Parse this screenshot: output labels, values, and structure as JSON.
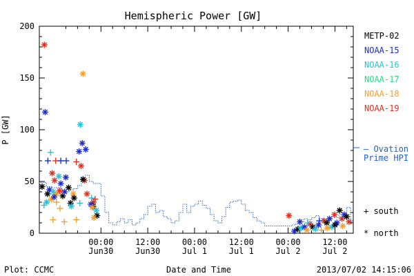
{
  "chart_data": {
    "type": "scatter",
    "title": "Hemispheric Power [GW]",
    "ylabel": "P [GW]",
    "xlabel": "Date and Time",
    "ylim": [
      0,
      200
    ],
    "y_ticks": [
      0,
      50,
      100,
      150,
      200
    ],
    "x_range_hours": [
      -15.8,
      64.7
    ],
    "x_ticks": [
      {
        "hour": 0,
        "line1": "00:00",
        "line2": "Jun30"
      },
      {
        "hour": 12,
        "line1": "12:00",
        "line2": "Jun30"
      },
      {
        "hour": 24,
        "line1": "00:00",
        "line2": "Jul 1"
      },
      {
        "hour": 36,
        "line1": "12:00",
        "line2": "Jul 1"
      },
      {
        "hour": 48,
        "line1": "00:00",
        "line2": "Jul 2"
      },
      {
        "hour": 60,
        "line1": "12:00",
        "line2": "Jul 2"
      }
    ],
    "legend": [
      {
        "name": "METP-02",
        "color": "#000000"
      },
      {
        "name": "NOAA-15",
        "color": "#1c2bd0"
      },
      {
        "name": "NOAA-16",
        "color": "#22c4e0"
      },
      {
        "name": "NOAA-17",
        "color": "#22dd88"
      },
      {
        "name": "NOAA-18",
        "color": "#f0a030"
      },
      {
        "name": "NOAA-19",
        "color": "#e03020"
      }
    ],
    "ovation_label_line1": "– Ovation",
    "ovation_label_line2": "Prime HPI",
    "ovation_color": "#1f5fd0",
    "symbol_south_label": "+ south",
    "symbol_north_label": "* north",
    "ovation_series": [
      [
        -15.5,
        49
      ],
      [
        -14,
        45
      ],
      [
        -12.5,
        44
      ],
      [
        -11,
        44
      ],
      [
        -10,
        42
      ],
      [
        -9,
        40
      ],
      [
        -8,
        42
      ],
      [
        -7,
        43
      ],
      [
        -6,
        46
      ],
      [
        -5,
        54
      ],
      [
        -4,
        56
      ],
      [
        -3,
        50
      ],
      [
        -2,
        48
      ],
      [
        -1,
        48
      ],
      [
        0,
        36
      ],
      [
        1,
        20
      ],
      [
        2,
        10
      ],
      [
        3,
        8
      ],
      [
        4,
        11
      ],
      [
        5,
        14
      ],
      [
        6,
        10
      ],
      [
        7,
        13
      ],
      [
        8,
        8
      ],
      [
        9,
        10
      ],
      [
        10,
        14
      ],
      [
        11,
        18
      ],
      [
        12,
        26
      ],
      [
        13,
        28
      ],
      [
        14,
        20
      ],
      [
        15,
        22
      ],
      [
        16,
        16
      ],
      [
        17,
        14
      ],
      [
        18,
        10
      ],
      [
        19,
        12
      ],
      [
        20,
        20
      ],
      [
        21,
        28
      ],
      [
        22,
        20
      ],
      [
        23,
        26
      ],
      [
        24,
        28
      ],
      [
        25,
        31
      ],
      [
        26,
        27
      ],
      [
        27,
        24
      ],
      [
        28,
        18
      ],
      [
        29,
        12
      ],
      [
        30,
        10
      ],
      [
        31,
        16
      ],
      [
        32,
        25
      ],
      [
        33,
        30
      ],
      [
        34,
        31
      ],
      [
        35,
        32
      ],
      [
        36,
        28
      ],
      [
        37,
        22
      ],
      [
        38,
        20
      ],
      [
        39,
        15
      ],
      [
        40,
        12
      ],
      [
        41,
        10
      ],
      [
        42,
        7
      ],
      [
        43,
        7
      ],
      [
        44,
        7
      ],
      [
        45,
        7
      ],
      [
        46,
        7
      ],
      [
        47,
        7
      ],
      [
        48,
        7
      ],
      [
        49,
        8
      ],
      [
        50,
        9
      ],
      [
        51,
        11
      ],
      [
        52,
        14
      ],
      [
        53,
        13
      ],
      [
        54,
        15
      ],
      [
        55,
        17
      ],
      [
        56,
        14
      ],
      [
        57,
        12
      ],
      [
        58,
        14
      ],
      [
        59,
        16
      ],
      [
        60,
        15
      ],
      [
        61,
        18
      ],
      [
        62,
        20
      ],
      [
        63,
        25
      ],
      [
        64,
        12
      ]
    ],
    "points": [
      {
        "sat": "NOAA-19",
        "h": "north",
        "x": -14.5,
        "y": 182
      },
      {
        "sat": "NOAA-15",
        "h": "north",
        "x": -14.3,
        "y": 117
      },
      {
        "sat": "NOAA-18",
        "h": "north",
        "x": -4.6,
        "y": 154
      },
      {
        "sat": "NOAA-16",
        "h": "north",
        "x": -5.3,
        "y": 105
      },
      {
        "sat": "NOAA-15",
        "h": "north",
        "x": -4.8,
        "y": 87
      },
      {
        "sat": "NOAA-15",
        "h": "north",
        "x": -3.9,
        "y": 81
      },
      {
        "sat": "NOAA-15",
        "h": "north",
        "x": -5.6,
        "y": 79
      },
      {
        "sat": "NOAA-16",
        "h": "south",
        "x": -12.9,
        "y": 78
      },
      {
        "sat": "NOAA-15",
        "h": "south",
        "x": -13.6,
        "y": 70
      },
      {
        "sat": "NOAA-19",
        "h": "south",
        "x": -11.6,
        "y": 70
      },
      {
        "sat": "NOAA-15",
        "h": "south",
        "x": -10.3,
        "y": 70
      },
      {
        "sat": "NOAA-15",
        "h": "south",
        "x": -8.9,
        "y": 70
      },
      {
        "sat": "NOAA-19",
        "h": "south",
        "x": -6.3,
        "y": 69
      },
      {
        "sat": "NOAA-19",
        "h": "north",
        "x": -5.1,
        "y": 65
      },
      {
        "sat": "NOAA-19",
        "h": "north",
        "x": -12.5,
        "y": 58
      },
      {
        "sat": "NOAA-16",
        "h": "north",
        "x": -10.8,
        "y": 55
      },
      {
        "sat": "NOAA-15",
        "h": "north",
        "x": -9.0,
        "y": 54
      },
      {
        "sat": "NOAA-19",
        "h": "north",
        "x": -11.9,
        "y": 51
      },
      {
        "sat": "NOAA-19",
        "h": "north",
        "x": -4.2,
        "y": 51
      },
      {
        "sat": "NOAA-15",
        "h": "north",
        "x": -10.3,
        "y": 48
      },
      {
        "sat": "METP-02",
        "h": "north",
        "x": -15.1,
        "y": 45
      },
      {
        "sat": "METP-02",
        "h": "north",
        "x": -8.3,
        "y": 44
      },
      {
        "sat": "METP-02",
        "h": "north",
        "x": -4.6,
        "y": 52
      },
      {
        "sat": "NOAA-15",
        "h": "north",
        "x": -13.2,
        "y": 42
      },
      {
        "sat": "METP-02",
        "h": "north",
        "x": -13.7,
        "y": 38
      },
      {
        "sat": "NOAA-16",
        "h": "north",
        "x": -12.2,
        "y": 40
      },
      {
        "sat": "NOAA-18",
        "h": "north",
        "x": -11.4,
        "y": 38
      },
      {
        "sat": "NOAA-19",
        "h": "north",
        "x": -10.6,
        "y": 41
      },
      {
        "sat": "METP-02",
        "h": "north",
        "x": -9.8,
        "y": 36
      },
      {
        "sat": "NOAA-15",
        "h": "north",
        "x": -9.3,
        "y": 40
      },
      {
        "sat": "NOAA-18",
        "h": "north",
        "x": -7.1,
        "y": 38
      },
      {
        "sat": "METP-02",
        "h": "north",
        "x": -6.9,
        "y": 34
      },
      {
        "sat": "NOAA-19",
        "h": "north",
        "x": -3.6,
        "y": 38
      },
      {
        "sat": "NOAA-16",
        "h": "south",
        "x": -14.6,
        "y": 27
      },
      {
        "sat": "NOAA-16",
        "h": "north",
        "x": -13.9,
        "y": 30
      },
      {
        "sat": "NOAA-18",
        "h": "north",
        "x": -12.7,
        "y": 33
      },
      {
        "sat": "NOAA-15",
        "h": "north",
        "x": -12.0,
        "y": 35
      },
      {
        "sat": "NOAA-18",
        "h": "south",
        "x": -11.4,
        "y": 30
      },
      {
        "sat": "METP-02",
        "h": "north",
        "x": -7.8,
        "y": 29
      },
      {
        "sat": "NOAA-16",
        "h": "south",
        "x": -5.4,
        "y": 29
      },
      {
        "sat": "NOAA-18",
        "h": "south",
        "x": -10.5,
        "y": 24
      },
      {
        "sat": "NOAA-16",
        "h": "south",
        "x": -2.4,
        "y": 34
      },
      {
        "sat": "NOAA-19",
        "h": "north",
        "x": -1.9,
        "y": 30
      },
      {
        "sat": "NOAA-19",
        "h": "south",
        "x": -1.5,
        "y": 33
      },
      {
        "sat": "METP-02",
        "h": "north",
        "x": -2.0,
        "y": 26
      },
      {
        "sat": "NOAA-15",
        "h": "north",
        "x": -2.6,
        "y": 28
      },
      {
        "sat": "NOAA-18",
        "h": "north",
        "x": -2.2,
        "y": 25
      },
      {
        "sat": "NOAA-16",
        "h": "north",
        "x": -1.2,
        "y": 22
      },
      {
        "sat": "METP-02",
        "h": "north",
        "x": -1.0,
        "y": 17
      },
      {
        "sat": "NOAA-18",
        "h": "north",
        "x": -1.8,
        "y": 15
      },
      {
        "sat": "NOAA-18",
        "h": "south",
        "x": -12.3,
        "y": 13
      },
      {
        "sat": "NOAA-18",
        "h": "south",
        "x": -9.4,
        "y": 11
      },
      {
        "sat": "NOAA-18",
        "h": "south",
        "x": -6.3,
        "y": 13
      },
      {
        "sat": "NOAA-16",
        "h": "north",
        "x": -7.6,
        "y": 26
      },
      {
        "sat": "NOAA-19",
        "h": "north",
        "x": 48.2,
        "y": 17
      },
      {
        "sat": "NOAA-15",
        "h": "north",
        "x": 49.6,
        "y": 2
      },
      {
        "sat": "METP-02",
        "h": "north",
        "x": 50.5,
        "y": 4
      },
      {
        "sat": "NOAA-16",
        "h": "north",
        "x": 51.3,
        "y": 5
      },
      {
        "sat": "NOAA-15",
        "h": "north",
        "x": 52.2,
        "y": 6
      },
      {
        "sat": "NOAA-18",
        "h": "north",
        "x": 52.8,
        "y": 3
      },
      {
        "sat": "NOAA-19",
        "h": "north",
        "x": 53.6,
        "y": 9
      },
      {
        "sat": "METP-02",
        "h": "north",
        "x": 54.3,
        "y": 6
      },
      {
        "sat": "NOAA-16",
        "h": "north",
        "x": 55.0,
        "y": 4
      },
      {
        "sat": "NOAA-15",
        "h": "north",
        "x": 55.8,
        "y": 8
      },
      {
        "sat": "NOAA-18",
        "h": "south",
        "x": 56.5,
        "y": 3
      },
      {
        "sat": "NOAA-19",
        "h": "north",
        "x": 57.2,
        "y": 12
      },
      {
        "sat": "METP-02",
        "h": "north",
        "x": 57.9,
        "y": 10
      },
      {
        "sat": "NOAA-15",
        "h": "north",
        "x": 58.6,
        "y": 14
      },
      {
        "sat": "NOAA-16",
        "h": "north",
        "x": 59.2,
        "y": 6
      },
      {
        "sat": "NOAA-19",
        "h": "north",
        "x": 59.9,
        "y": 18
      },
      {
        "sat": "NOAA-15",
        "h": "north",
        "x": 60.5,
        "y": 10
      },
      {
        "sat": "METP-02",
        "h": "north",
        "x": 61.2,
        "y": 22
      },
      {
        "sat": "NOAA-19",
        "h": "north",
        "x": 61.8,
        "y": 14
      },
      {
        "sat": "NOAA-15",
        "h": "north",
        "x": 62.4,
        "y": 18
      },
      {
        "sat": "METP-02",
        "h": "north",
        "x": 63.0,
        "y": 16
      },
      {
        "sat": "NOAA-19",
        "h": "north",
        "x": 63.6,
        "y": 11
      },
      {
        "sat": "NOAA-18",
        "h": "north",
        "x": 58.0,
        "y": 5
      },
      {
        "sat": "NOAA-16",
        "h": "south",
        "x": 53.0,
        "y": 10
      },
      {
        "sat": "NOAA-15",
        "h": "south",
        "x": 56.0,
        "y": 12
      },
      {
        "sat": "METP-02",
        "h": "north",
        "x": 60.0,
        "y": 8
      },
      {
        "sat": "NOAA-18",
        "h": "north",
        "x": 62.0,
        "y": 7
      },
      {
        "sat": "NOAA-15",
        "h": "north",
        "x": 51.0,
        "y": 11
      }
    ]
  },
  "footer": {
    "left": "Plot: CCMC",
    "center": "Date and Time",
    "right": "2013/07/02 14:15:06"
  }
}
